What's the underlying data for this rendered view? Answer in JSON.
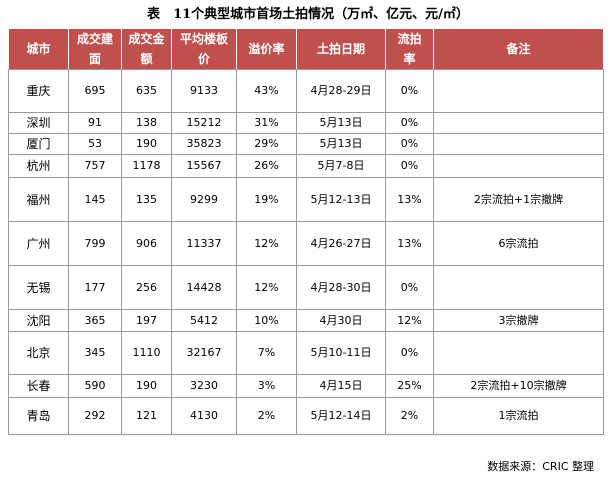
{
  "title": "表　11个典型城市首场土拍情况（万㎡、亿元、元/㎡）",
  "table": {
    "header": [
      "城市",
      "成交建面",
      "成交金额",
      "平均楼板价",
      "溢价率",
      "土拍日期",
      "流拍率",
      "备注"
    ],
    "rows": [
      [
        "重庆",
        "695",
        "635",
        "9133",
        "43%",
        "4月28-29日",
        "0%",
        null
      ],
      [
        "深圳",
        "91",
        "138",
        "15212",
        "31%",
        "5月13日",
        "0%",
        null
      ],
      [
        "厦门",
        "53",
        "190",
        "35823",
        "29%",
        "5月13日",
        "0%",
        null
      ],
      [
        "杭州",
        "757",
        "1178",
        "15567",
        "26%",
        "5月7-8日",
        "0%",
        null
      ],
      [
        "福州",
        "145",
        "135",
        "9299",
        "19%",
        "5月12-13日",
        "13%",
        "2宗流拍+1宗撤牌"
      ],
      [
        "广州",
        "799",
        "906",
        "11337",
        "12%",
        "4月26-27日",
        "13%",
        "6宗流拍"
      ],
      [
        "无锡",
        "177",
        "256",
        "14428",
        "12%",
        "4月28-30日",
        "0%",
        null
      ],
      [
        "沈阳",
        "365",
        "197",
        "5412",
        "10%",
        "4月30日",
        "12%",
        "3宗撤牌"
      ],
      [
        "北京",
        "345",
        "1110",
        "32167",
        "7%",
        "5月10-11日",
        "0%",
        null
      ],
      [
        "长春",
        "590",
        "190",
        "3230",
        "3%",
        "4月15日",
        "25%",
        "2宗流拍+10宗撤牌"
      ],
      [
        "青岛",
        "292",
        "121",
        "4130",
        "2%",
        "5月12-14日",
        "2%",
        "1宗流拍"
      ]
    ]
  },
  "source": "数据来源：CRIC 整理"
}
